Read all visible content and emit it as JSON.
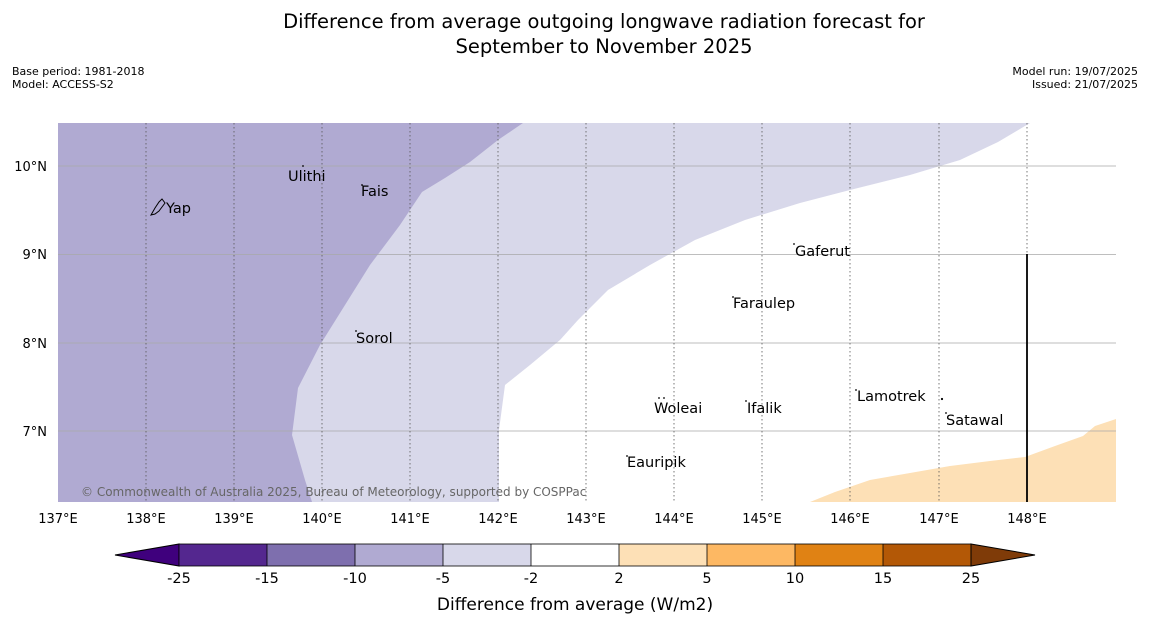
{
  "title": {
    "line1": "Difference from average outgoing longwave radiation forecast for",
    "line2": "September to November 2025"
  },
  "meta": {
    "base_period": "Base period: 1981-2018",
    "model": "Model: ACCESS-S2",
    "model_run": "Model run: 19/07/2025",
    "issued": "Issued: 21/07/2025"
  },
  "map": {
    "copyright": "© Commonwealth of Australia 2025, Bureau of Meteorology, supported by COSPPac",
    "lon_ticks": [
      "137°E",
      "138°E",
      "139°E",
      "140°E",
      "141°E",
      "142°E",
      "143°E",
      "144°E",
      "145°E",
      "146°E",
      "147°E",
      "148°E"
    ],
    "lat_ticks": [
      "10°N",
      "9°N",
      "8°N",
      "7°N"
    ],
    "places": {
      "yap": "Yap",
      "ulithi": "Ulithi",
      "fais": "Fais",
      "gaferut": "Gaferut",
      "faraulep": "Faraulep",
      "sorol": "Sorol",
      "woleai": "Woleai",
      "ifalik": "Ifalik",
      "lamotrek": "Lamotrek",
      "satawal": "Satawal",
      "eauripik": "Eauripik"
    },
    "colors": {
      "light_purple": "#b0aad2",
      "pale_purple": "#d8d8ea",
      "pale_orange": "#fde0b6"
    }
  },
  "colorbar": {
    "title": "Difference from average (W/m2)",
    "ticks": [
      "-25",
      "-15",
      "-10",
      "-5",
      "-2",
      "2",
      "5",
      "10",
      "15",
      "25"
    ],
    "colors": [
      "#3f007d",
      "#54278f",
      "#7e6fae",
      "#b0aad2",
      "#d8d8ea",
      "#ffffff",
      "#fde0b6",
      "#fdb863",
      "#e08214",
      "#b35806",
      "#7f3b08"
    ]
  }
}
